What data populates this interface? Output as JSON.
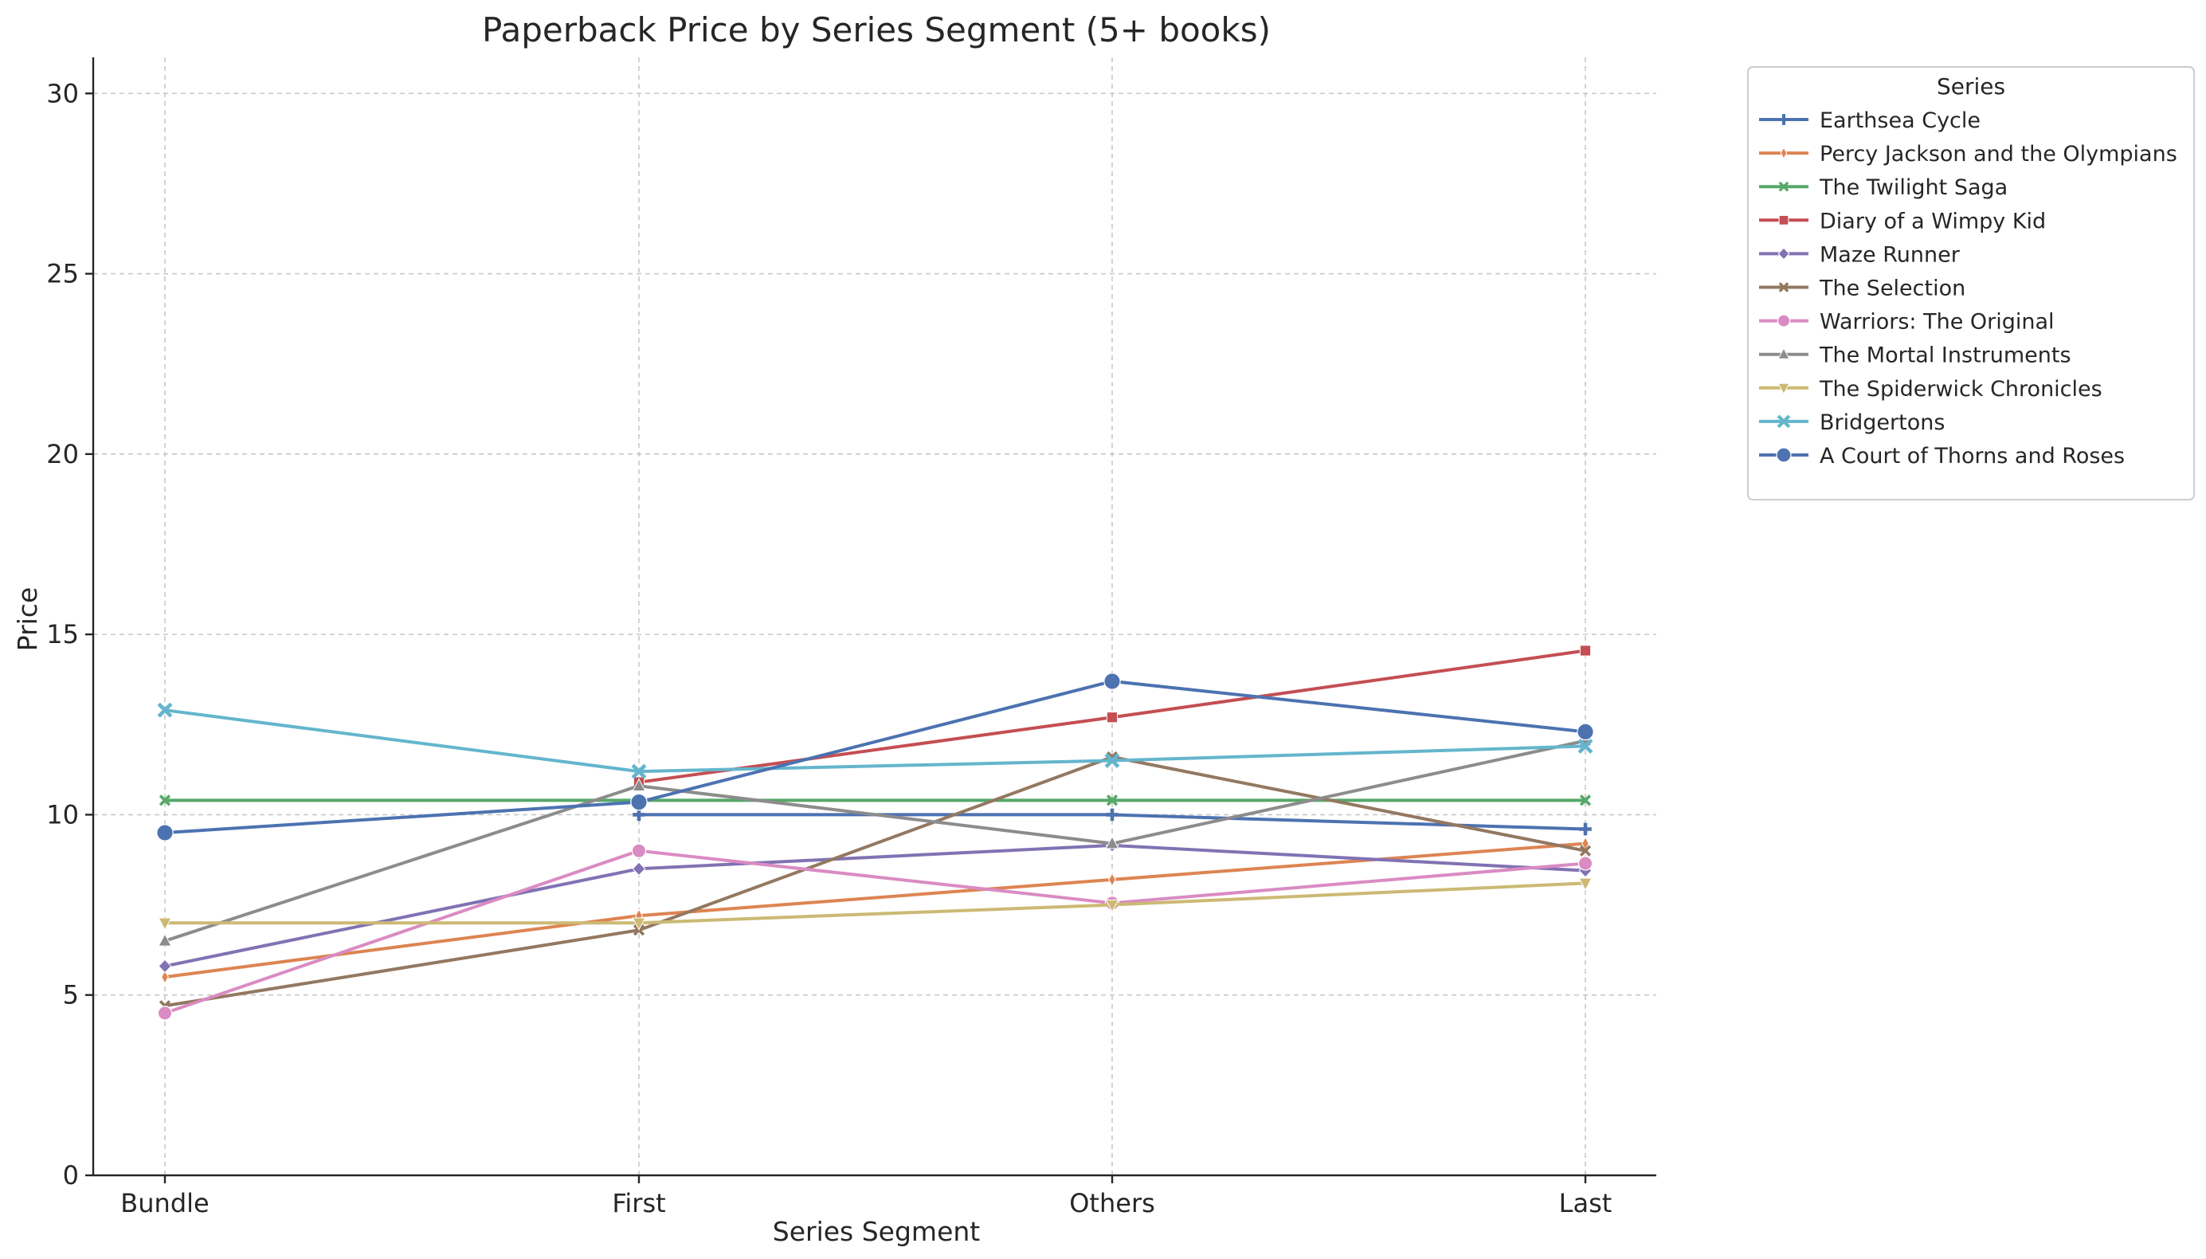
{
  "chart_data": {
    "type": "line",
    "title": "Paperback Price by Series Segment (5+ books)",
    "xlabel": "Series Segment",
    "ylabel": "Price",
    "categories": [
      "Bundle",
      "First",
      "Others",
      "Last"
    ],
    "ylim": [
      0,
      31
    ],
    "yticks": [
      0,
      5,
      10,
      15,
      20,
      25,
      30
    ],
    "grid": true,
    "legend": {
      "title": "Series",
      "placement": "outside-top-right"
    },
    "series": [
      {
        "name": "Earthsea Cycle",
        "color": "#4c72b0",
        "marker": "plus",
        "values": [
          null,
          10.0,
          10.0,
          9.6
        ]
      },
      {
        "name": "Percy Jackson and the Olympians",
        "color": "#dd8452",
        "marker": "thin-diamond",
        "values": [
          5.5,
          7.2,
          8.2,
          9.2
        ]
      },
      {
        "name": "The Twilight Saga",
        "color": "#55a868",
        "marker": "x",
        "values": [
          10.4,
          10.4,
          10.4,
          10.4
        ]
      },
      {
        "name": "Diary of a Wimpy Kid",
        "color": "#c44e52",
        "marker": "square",
        "values": [
          null,
          10.9,
          12.7,
          14.55
        ]
      },
      {
        "name": "Maze Runner",
        "color": "#8172b3",
        "marker": "diamond",
        "values": [
          5.8,
          8.5,
          9.15,
          8.45
        ]
      },
      {
        "name": "The Selection",
        "color": "#937860",
        "marker": "x",
        "values": [
          4.7,
          6.8,
          11.6,
          9.0
        ]
      },
      {
        "name": "Warriors: The Original",
        "color": "#da8bc3",
        "marker": "circle",
        "values": [
          4.5,
          9.0,
          7.55,
          8.65
        ]
      },
      {
        "name": "The Mortal Instruments",
        "color": "#8c8c8c",
        "marker": "triangle-up",
        "values": [
          6.5,
          10.8,
          9.2,
          12.05
        ]
      },
      {
        "name": "The Spiderwick Chronicles",
        "color": "#ccb974",
        "marker": "triangle-down",
        "values": [
          7.0,
          7.0,
          7.5,
          8.1
        ]
      },
      {
        "name": "Bridgertons",
        "color": "#64b5cd",
        "marker": "x-bold",
        "values": [
          12.9,
          11.2,
          11.5,
          11.9
        ]
      },
      {
        "name": "A Court of Thorns and Roses",
        "color": "#4c72b0",
        "marker": "circle-large",
        "values": [
          9.5,
          10.35,
          13.7,
          12.3
        ]
      }
    ]
  }
}
